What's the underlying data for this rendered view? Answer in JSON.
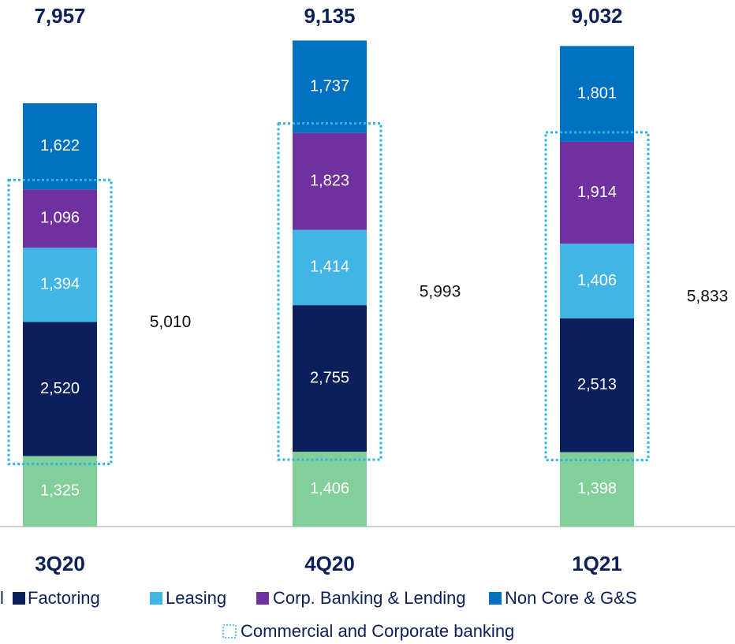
{
  "chart_data": {
    "type": "bar",
    "stacked": true,
    "categories": [
      "3Q20",
      "4Q20",
      "1Q21"
    ],
    "series": [
      {
        "name": "l",
        "color": "#82cf9a",
        "values": [
          1325,
          1406,
          1398
        ]
      },
      {
        "name": "Factoring",
        "color": "#0a1f5c",
        "values": [
          2520,
          2755,
          2513
        ]
      },
      {
        "name": "Leasing",
        "color": "#41b6e6",
        "values": [
          1394,
          1414,
          1406
        ]
      },
      {
        "name": "Corp. Banking & Lending",
        "color": "#7030a0",
        "values": [
          1096,
          1823,
          1914
        ]
      },
      {
        "name": "Non Core & G&S",
        "color": "#0070c0",
        "values": [
          1622,
          1737,
          1801
        ]
      }
    ],
    "value_labels": [
      [
        "1,325",
        "1,406",
        "1,398"
      ],
      [
        "2,520",
        "2,755",
        "2,513"
      ],
      [
        "1,394",
        "1,414",
        "1,406"
      ],
      [
        "1,096",
        "1,823",
        "1,914"
      ],
      [
        "1,622",
        "1,737",
        "1,801"
      ]
    ],
    "totals": [
      7957,
      9135,
      9032
    ],
    "totals_labels": [
      "7,957",
      "9,135",
      "9,032"
    ],
    "commercial_totals": [
      5010,
      5993,
      5833
    ],
    "commercial_totals_labels": [
      "5,010",
      "5,993",
      "5,833"
    ],
    "commercial_box": {
      "label": "Commercial and Corporate banking",
      "color": "#29b6e6"
    }
  }
}
